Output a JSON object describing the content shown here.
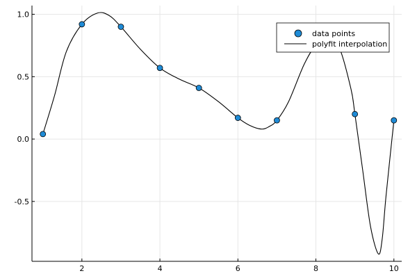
{
  "chart_data": {
    "type": "scatter",
    "title": "",
    "xlabel": "",
    "ylabel": "",
    "xlim": [
      0.72,
      10.2
    ],
    "ylim": [
      -0.98,
      1.07
    ],
    "xticks": [
      2,
      4,
      6,
      8,
      10
    ],
    "yticks": [
      -0.5,
      0.0,
      0.5,
      1.0
    ],
    "xtick_labels": [
      "2",
      "4",
      "6",
      "8",
      "10"
    ],
    "ytick_labels": [
      "-0.5",
      "0.0",
      "0.5",
      "1.0"
    ],
    "grid": true,
    "legend": "top-right",
    "series": [
      {
        "name": "data points",
        "kind": "scatter",
        "color": "#1f8bd6",
        "x": [
          1,
          2,
          3,
          4,
          5,
          6,
          7,
          8,
          9,
          10
        ],
        "y": [
          0.04,
          0.92,
          0.9,
          0.57,
          0.41,
          0.17,
          0.15,
          0.75,
          0.2,
          0.15
        ]
      },
      {
        "name": "polyfit interpolation",
        "kind": "line",
        "color": "#000000",
        "x": [
          1,
          1.3,
          1.6,
          2,
          2.4,
          2.7,
          3,
          3.5,
          4,
          4.5,
          5,
          5.5,
          6,
          6.3,
          6.6,
          6.8,
          7,
          7.3,
          7.7,
          8,
          8.3,
          8.6,
          8.9,
          9,
          9.2,
          9.4,
          9.6,
          9.7,
          9.8,
          10
        ],
        "y": [
          0.04,
          0.35,
          0.7,
          0.92,
          1.01,
          0.99,
          0.9,
          0.72,
          0.57,
          0.48,
          0.41,
          0.3,
          0.17,
          0.11,
          0.08,
          0.1,
          0.15,
          0.3,
          0.6,
          0.75,
          0.78,
          0.73,
          0.4,
          0.2,
          -0.25,
          -0.7,
          -0.92,
          -0.8,
          -0.45,
          0.15
        ]
      }
    ]
  }
}
